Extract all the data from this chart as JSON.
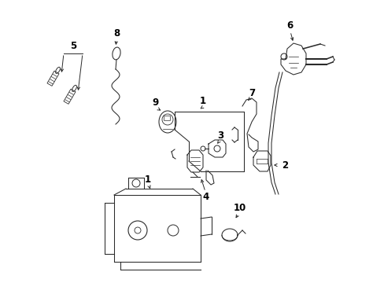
{
  "bg_color": "#ffffff",
  "line_color": "#2a2a2a",
  "label_color": "#000000",
  "figsize": [
    4.89,
    3.6
  ],
  "dpi": 100,
  "lw": 0.75,
  "fontsize": 8.5
}
